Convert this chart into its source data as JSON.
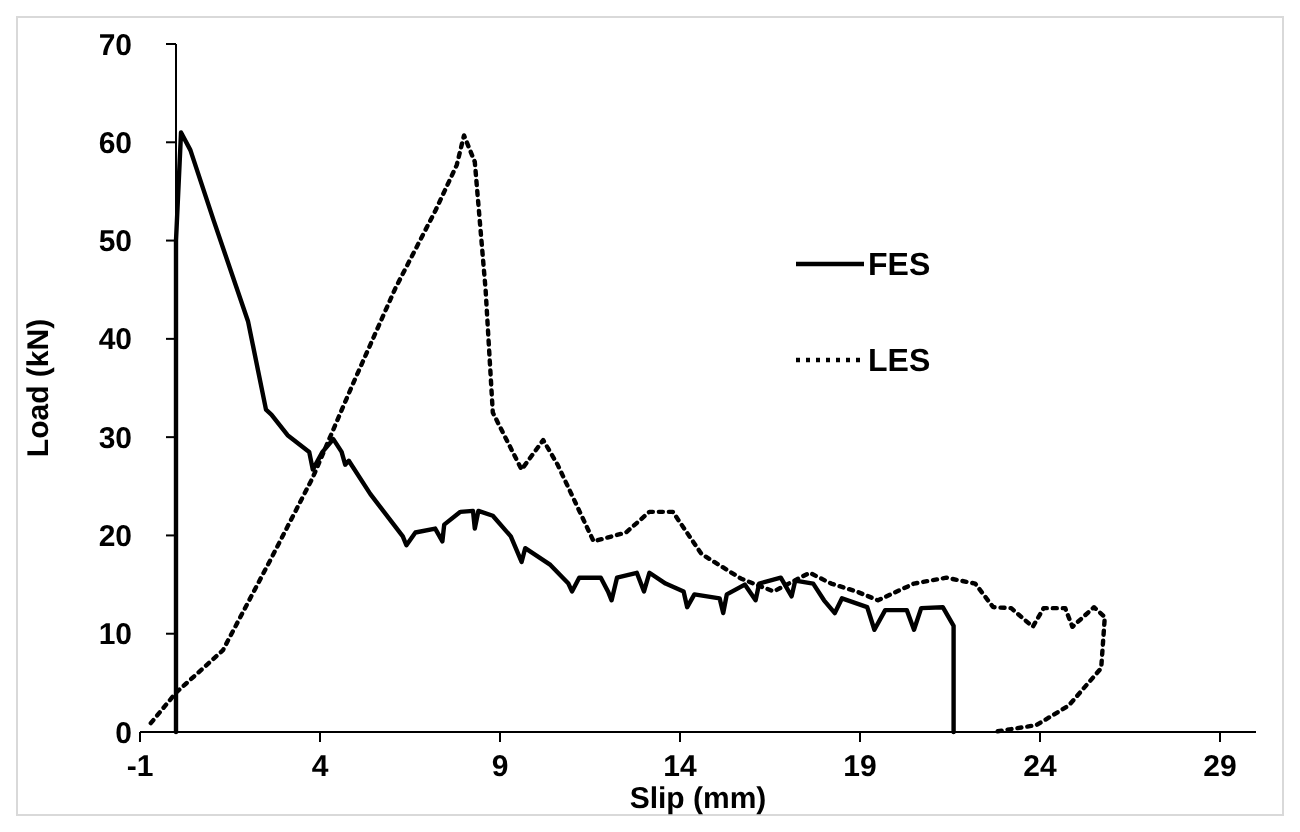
{
  "chart_data": {
    "type": "line",
    "xlabel": "Slip (mm)",
    "ylabel": "Load (kN)",
    "xlim": [
      -1,
      30
    ],
    "xticks": [
      -1,
      4,
      9,
      14,
      19,
      24,
      29
    ],
    "ylim": [
      0,
      70
    ],
    "yticks": [
      0,
      10,
      20,
      30,
      40,
      50,
      60,
      70
    ],
    "grid": false,
    "legend": "top right",
    "marker": "none",
    "series": [
      {
        "name": "FES",
        "color": "#000000",
        "line_style": "solid",
        "x": [
          0,
          0,
          0.14,
          0.4,
          1.05,
          2.0,
          2.5,
          2.65,
          3.1,
          3.7,
          3.8,
          4.07,
          4.37,
          4.6,
          4.7,
          4.8,
          5.4,
          6.3,
          6.4,
          6.65,
          7.2,
          7.4,
          7.45,
          7.9,
          8.25,
          8.3,
          8.4,
          8.8,
          9.3,
          9.6,
          9.7,
          10.4,
          10.9,
          11,
          11.2,
          11.8,
          12,
          12.1,
          12.25,
          12.8,
          13,
          13.15,
          13.6,
          14.1,
          14.2,
          14.4,
          15.1,
          15.2,
          15.3,
          15.8,
          16.1,
          16.2,
          16.8,
          17.1,
          17.2,
          17.7,
          18,
          18.3,
          18.5,
          19.2,
          19.4,
          19.7,
          20.3,
          20.5,
          20.7,
          21.3,
          21.6,
          21.6
        ],
        "values": [
          0,
          50,
          61,
          59.2,
          52,
          41.8,
          32.8,
          32.3,
          30.2,
          28.5,
          26.7,
          28.5,
          29.8,
          28.5,
          27.2,
          27.6,
          24.2,
          19.9,
          19,
          20.3,
          20.7,
          19.4,
          21.1,
          22.4,
          22.5,
          20.7,
          22.5,
          22,
          19.9,
          17.3,
          18.7,
          17,
          15.1,
          14.3,
          15.7,
          15.7,
          14.3,
          13.4,
          15.7,
          16.2,
          14.3,
          16.2,
          15.1,
          14.3,
          12.7,
          14,
          13.6,
          12.1,
          14,
          15,
          13.4,
          15.1,
          15.7,
          13.8,
          15.4,
          15.1,
          13.4,
          12.1,
          13.6,
          12.7,
          10.4,
          12.4,
          12.4,
          10.4,
          12.6,
          12.7,
          10.8,
          0
        ]
      },
      {
        "name": "LES",
        "color": "#000000",
        "line_style": "dotted",
        "x": [
          -0.7,
          0,
          1.3,
          2.65,
          3.8,
          4.9,
          6.1,
          7.2,
          7.8,
          8.0,
          8.3,
          8.6,
          8.8,
          9.6,
          10.2,
          10.6,
          11.6,
          12.5,
          13.15,
          13.8,
          14.6,
          15.7,
          16.6,
          17.6,
          18.2,
          18.9,
          19.5,
          20.5,
          21.4,
          22.2,
          22.7,
          23.2,
          23.8,
          24.1,
          24.7,
          24.9,
          25.5,
          25.8,
          25.7,
          24.8,
          23.9,
          22.7
        ],
        "values": [
          0.9,
          4,
          8.3,
          17.7,
          25.9,
          35.3,
          45.2,
          53,
          57.7,
          60.7,
          58,
          45,
          32.5,
          26.7,
          29.7,
          27.2,
          19.4,
          20.3,
          22.4,
          22.4,
          18.1,
          15.6,
          14.3,
          16.2,
          15.1,
          14.3,
          13.4,
          15.1,
          15.7,
          15.1,
          12.7,
          12.6,
          10.7,
          12.6,
          12.6,
          10.7,
          12.7,
          11.7,
          6.5,
          2.7,
          0.7,
          0
        ]
      }
    ]
  }
}
